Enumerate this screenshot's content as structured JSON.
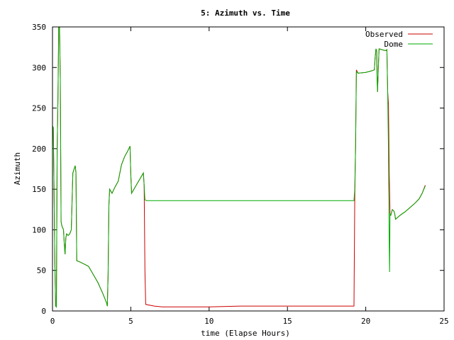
{
  "chart_data": {
    "type": "line",
    "title": "5: Azimuth vs. Time",
    "xlabel": "time (Elapse Hours)",
    "ylabel": "Azimuth",
    "xlim": [
      0,
      25
    ],
    "ylim": [
      0,
      350
    ],
    "xticks": [
      0,
      5,
      10,
      15,
      20,
      25
    ],
    "yticks": [
      0,
      50,
      100,
      150,
      200,
      250,
      300,
      350
    ],
    "grid": false,
    "legend_position": "top-right",
    "series": [
      {
        "name": "Observed",
        "color": "#cc0000",
        "points": [
          [
            0.0,
            228
          ],
          [
            0.05,
            226
          ],
          [
            0.1,
            150
          ],
          [
            0.15,
            60
          ],
          [
            0.2,
            6
          ],
          [
            0.25,
            5
          ],
          [
            0.3,
            200
          ],
          [
            0.35,
            262
          ],
          [
            0.4,
            350
          ],
          [
            0.45,
            350
          ],
          [
            0.5,
            285
          ],
          [
            0.55,
            110
          ],
          [
            0.6,
            105
          ],
          [
            0.7,
            100
          ],
          [
            0.75,
            83
          ],
          [
            0.8,
            70
          ],
          [
            0.85,
            90
          ],
          [
            0.9,
            95
          ],
          [
            1.0,
            93
          ],
          [
            1.1,
            95
          ],
          [
            1.2,
            100
          ],
          [
            1.3,
            170
          ],
          [
            1.4,
            176
          ],
          [
            1.45,
            179
          ],
          [
            1.5,
            170
          ],
          [
            1.55,
            62
          ],
          [
            1.8,
            60
          ],
          [
            2.1,
            57
          ],
          [
            2.3,
            55
          ],
          [
            2.6,
            45
          ],
          [
            2.9,
            35
          ],
          [
            3.2,
            22
          ],
          [
            3.45,
            10
          ],
          [
            3.5,
            6
          ],
          [
            3.55,
            45
          ],
          [
            3.58,
            90
          ],
          [
            3.6,
            130
          ],
          [
            3.65,
            150
          ],
          [
            3.8,
            145
          ],
          [
            4.0,
            153
          ],
          [
            4.2,
            160
          ],
          [
            4.4,
            180
          ],
          [
            4.6,
            190
          ],
          [
            4.8,
            197
          ],
          [
            4.95,
            203
          ],
          [
            5.0,
            168
          ],
          [
            5.05,
            145
          ],
          [
            5.2,
            150
          ],
          [
            5.5,
            160
          ],
          [
            5.8,
            170
          ],
          [
            5.85,
            155
          ],
          [
            5.9,
            50
          ],
          [
            5.95,
            8
          ],
          [
            6.5,
            6
          ],
          [
            7.0,
            5
          ],
          [
            10.0,
            5
          ],
          [
            12.0,
            6
          ],
          [
            15.0,
            6
          ],
          [
            19.25,
            6
          ],
          [
            19.3,
            140
          ],
          [
            19.35,
            200
          ],
          [
            19.4,
            297
          ],
          [
            19.5,
            293
          ],
          [
            20.0,
            294
          ],
          [
            20.2,
            295
          ],
          [
            20.4,
            296
          ],
          [
            20.55,
            297
          ],
          [
            20.6,
            312
          ],
          [
            20.65,
            323
          ],
          [
            20.7,
            320
          ],
          [
            20.72,
            290
          ],
          [
            20.75,
            270
          ],
          [
            20.8,
            300
          ],
          [
            20.85,
            323
          ],
          [
            21.2,
            321
          ],
          [
            21.3,
            321
          ],
          [
            21.35,
            322
          ],
          [
            21.4,
            270
          ],
          [
            21.45,
            255
          ],
          [
            21.5,
            170
          ],
          [
            21.55,
            120
          ],
          [
            21.6,
            118
          ],
          [
            21.7,
            125
          ],
          [
            21.8,
            123
          ],
          [
            21.85,
            120
          ],
          [
            21.9,
            113
          ],
          [
            22.2,
            118
          ],
          [
            22.5,
            122
          ],
          [
            22.8,
            127
          ],
          [
            23.1,
            132
          ],
          [
            23.4,
            138
          ],
          [
            23.6,
            145
          ],
          [
            23.8,
            155
          ]
        ]
      },
      {
        "name": "Dome",
        "color": "#00aa00",
        "points": [
          [
            0.0,
            228
          ],
          [
            0.05,
            226
          ],
          [
            0.1,
            150
          ],
          [
            0.15,
            60
          ],
          [
            0.2,
            6
          ],
          [
            0.25,
            5
          ],
          [
            0.3,
            200
          ],
          [
            0.35,
            262
          ],
          [
            0.4,
            350
          ],
          [
            0.45,
            350
          ],
          [
            0.5,
            285
          ],
          [
            0.55,
            110
          ],
          [
            0.6,
            105
          ],
          [
            0.7,
            100
          ],
          [
            0.75,
            83
          ],
          [
            0.8,
            70
          ],
          [
            0.85,
            90
          ],
          [
            0.9,
            95
          ],
          [
            1.0,
            93
          ],
          [
            1.1,
            95
          ],
          [
            1.2,
            100
          ],
          [
            1.3,
            170
          ],
          [
            1.4,
            176
          ],
          [
            1.45,
            179
          ],
          [
            1.5,
            170
          ],
          [
            1.55,
            62
          ],
          [
            1.8,
            60
          ],
          [
            2.1,
            57
          ],
          [
            2.3,
            55
          ],
          [
            2.6,
            45
          ],
          [
            2.9,
            35
          ],
          [
            3.2,
            22
          ],
          [
            3.45,
            10
          ],
          [
            3.5,
            6
          ],
          [
            3.55,
            45
          ],
          [
            3.58,
            90
          ],
          [
            3.6,
            130
          ],
          [
            3.65,
            150
          ],
          [
            3.8,
            145
          ],
          [
            4.0,
            153
          ],
          [
            4.2,
            160
          ],
          [
            4.4,
            180
          ],
          [
            4.6,
            190
          ],
          [
            4.8,
            197
          ],
          [
            4.95,
            203
          ],
          [
            5.0,
            168
          ],
          [
            5.05,
            145
          ],
          [
            5.2,
            150
          ],
          [
            5.5,
            160
          ],
          [
            5.8,
            170
          ],
          [
            5.85,
            155
          ],
          [
            5.9,
            137
          ],
          [
            6.0,
            136
          ],
          [
            10.0,
            136
          ],
          [
            15.0,
            136
          ],
          [
            19.25,
            136
          ],
          [
            19.3,
            150
          ],
          [
            19.35,
            200
          ],
          [
            19.4,
            295
          ],
          [
            19.5,
            293
          ],
          [
            20.0,
            294
          ],
          [
            20.2,
            295
          ],
          [
            20.4,
            296
          ],
          [
            20.55,
            297
          ],
          [
            20.6,
            312
          ],
          [
            20.65,
            323
          ],
          [
            20.7,
            320
          ],
          [
            20.72,
            290
          ],
          [
            20.75,
            270
          ],
          [
            20.8,
            300
          ],
          [
            20.85,
            323
          ],
          [
            21.2,
            321
          ],
          [
            21.3,
            321
          ],
          [
            21.35,
            322
          ],
          [
            21.4,
            270
          ],
          [
            21.45,
            200
          ],
          [
            21.5,
            80
          ],
          [
            21.52,
            48
          ],
          [
            21.55,
            120
          ],
          [
            21.6,
            118
          ],
          [
            21.7,
            125
          ],
          [
            21.8,
            123
          ],
          [
            21.85,
            120
          ],
          [
            21.9,
            113
          ],
          [
            22.2,
            118
          ],
          [
            22.5,
            122
          ],
          [
            22.8,
            127
          ],
          [
            23.1,
            132
          ],
          [
            23.4,
            138
          ],
          [
            23.6,
            145
          ],
          [
            23.8,
            154
          ]
        ]
      }
    ]
  }
}
